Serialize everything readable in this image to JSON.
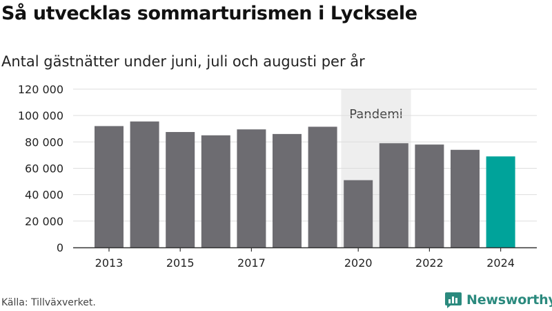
{
  "header": {
    "title": "Så utvecklas sommarturismen i Lycksele",
    "subtitle": "Antal gästnätter under juni, juli och augusti per år"
  },
  "footer": {
    "source": "Källa: Tillväxverket.",
    "brand": "Newsworthy",
    "brand_icon": "newsworthy-logo-icon"
  },
  "colors": {
    "bar": "#6d6c71",
    "highlight": "#00a39a",
    "band": "#eeeeee",
    "grid": "#dddddd",
    "brand": "#2b8a7e"
  },
  "chart_data": {
    "type": "bar",
    "title": "Så utvecklas sommarturismen i Lycksele",
    "subtitle": "Antal gästnätter under juni, juli och augusti per år",
    "categories": [
      "2013",
      "2014",
      "2015",
      "2016",
      "2017",
      "2018",
      "2019",
      "2020",
      "2021",
      "2022",
      "2023",
      "2024"
    ],
    "values": [
      92000,
      95500,
      87500,
      85000,
      89500,
      86000,
      91500,
      51000,
      79000,
      78000,
      74000,
      69000
    ],
    "highlight_category": "2024",
    "x_tick_labels": [
      "2013",
      "2015",
      "2017",
      "2020",
      "2022",
      "2024"
    ],
    "y_ticks": [
      0,
      20000,
      40000,
      60000,
      80000,
      100000,
      120000
    ],
    "y_tick_labels": [
      "0",
      "20 000",
      "40 000",
      "60 000",
      "80 000",
      "100 000",
      "120 000"
    ],
    "ylim": [
      0,
      120000
    ],
    "grid": "horizontal",
    "annotation": {
      "label": "Pandemi",
      "from": "2020",
      "to": "2021"
    }
  }
}
